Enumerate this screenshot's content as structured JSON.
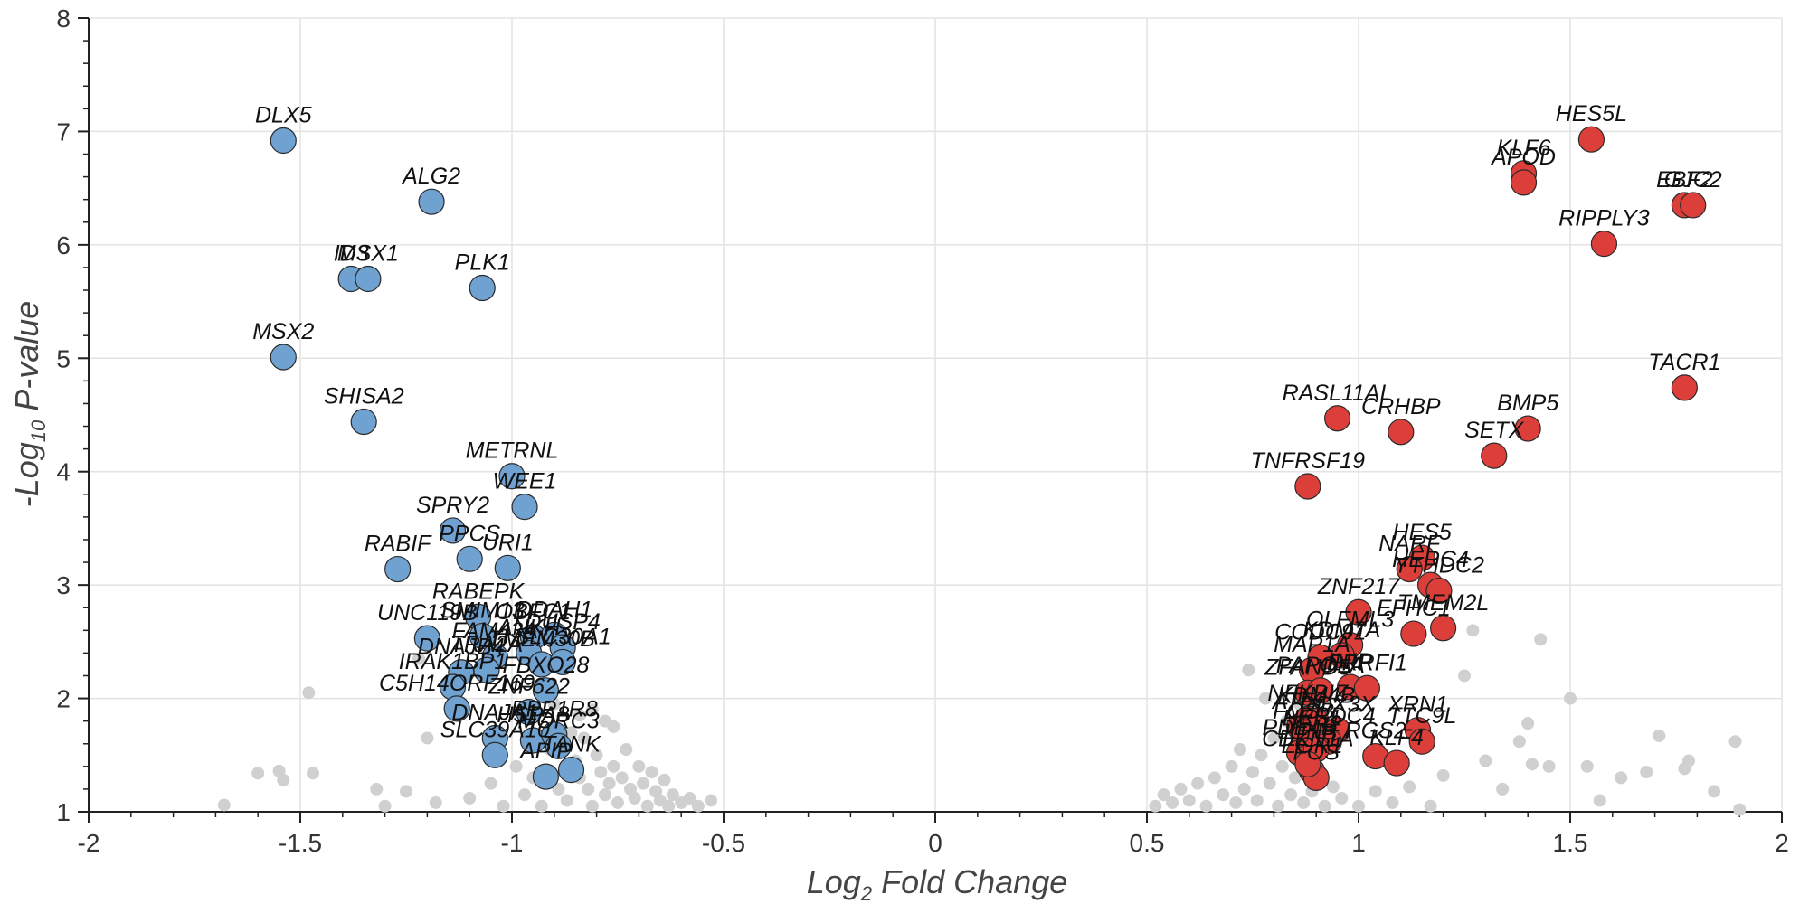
{
  "chart_data": {
    "type": "scatter",
    "xlabel_main": "Log",
    "xlabel_sub": "2",
    "xlabel_rest": " Fold Change",
    "ylabel_main": "-Log",
    "ylabel_sub": "10",
    "ylabel_rest": " P-value",
    "xlim": [
      -2,
      2
    ],
    "ylim": [
      1,
      8
    ],
    "x_ticks": [
      -2,
      -1.5,
      -1,
      -0.5,
      0,
      0.5,
      1,
      1.5,
      2
    ],
    "y_ticks": [
      1,
      2,
      3,
      4,
      5,
      6,
      7,
      8
    ],
    "grid": true,
    "colors": {
      "down": "#6fa1d1",
      "up": "#dc3f3a",
      "ns": "#d0d0d0"
    },
    "down_genes": [
      {
        "label": "DLX5",
        "x": -1.54,
        "y": 6.92
      },
      {
        "label": "ALG2",
        "x": -1.19,
        "y": 6.38
      },
      {
        "label": "ID3",
        "x": -1.38,
        "y": 5.7
      },
      {
        "label": "MSX1",
        "x": -1.34,
        "y": 5.7
      },
      {
        "label": "PLK1",
        "x": -1.07,
        "y": 5.62
      },
      {
        "label": "MSX2",
        "x": -1.54,
        "y": 5.01
      },
      {
        "label": "SHISA2",
        "x": -1.35,
        "y": 4.44
      },
      {
        "label": "METRNL",
        "x": -1.0,
        "y": 3.96
      },
      {
        "label": "WEE1",
        "x": -0.97,
        "y": 3.69
      },
      {
        "label": "SPRY2",
        "x": -1.14,
        "y": 3.48
      },
      {
        "label": "PPCS",
        "x": -1.1,
        "y": 3.23
      },
      {
        "label": "URI1",
        "x": -1.01,
        "y": 3.15
      },
      {
        "label": "RABIF",
        "x": -1.27,
        "y": 3.14
      },
      {
        "label": "RABEPK",
        "x": -1.08,
        "y": 2.72
      },
      {
        "label": "UNC119B",
        "x": -1.2,
        "y": 2.53
      },
      {
        "label": "SMIM13",
        "x": -1.07,
        "y": 2.55
      },
      {
        "label": "OBFC1",
        "x": -0.95,
        "y": 2.54
      },
      {
        "label": "DDAH1",
        "x": -0.9,
        "y": 2.56
      },
      {
        "label": "DUSP4",
        "x": -0.88,
        "y": 2.45
      },
      {
        "label": "FAM43A",
        "x": -1.04,
        "y": 2.37
      },
      {
        "label": "ANKH",
        "x": -0.96,
        "y": 2.4
      },
      {
        "label": "DNAJB4",
        "x": -1.12,
        "y": 2.23
      },
      {
        "label": "IRAK1BP1",
        "x": -1.14,
        "y": 2.1
      },
      {
        "label": "TRA2A",
        "x": -1.06,
        "y": 2.25
      },
      {
        "label": "TMEM30B",
        "x": -0.93,
        "y": 2.3
      },
      {
        "label": "SLC30A1",
        "x": -0.88,
        "y": 2.32
      },
      {
        "label": "C5H14ORF169",
        "x": -1.13,
        "y": 1.91
      },
      {
        "label": "FBXO28",
        "x": -0.92,
        "y": 2.07
      },
      {
        "label": "ZNF622",
        "x": -0.96,
        "y": 1.88
      },
      {
        "label": "DNAJA1",
        "x": -1.04,
        "y": 1.65
      },
      {
        "label": "HSPA8",
        "x": -0.95,
        "y": 1.63
      },
      {
        "label": "PPP1R8",
        "x": -0.9,
        "y": 1.68
      },
      {
        "label": "MORC3",
        "x": -0.89,
        "y": 1.58
      },
      {
        "label": "SLC39A10",
        "x": -1.04,
        "y": 1.5
      },
      {
        "label": "APIP",
        "x": -0.92,
        "y": 1.31
      },
      {
        "label": "TANK",
        "x": -0.86,
        "y": 1.37
      }
    ],
    "up_genes": [
      {
        "label": "HES5L",
        "x": 1.55,
        "y": 6.93
      },
      {
        "label": "KLF6",
        "x": 1.39,
        "y": 6.63
      },
      {
        "label": "APOD",
        "x": 1.39,
        "y": 6.55
      },
      {
        "label": "EBF2",
        "x": 1.77,
        "y": 6.35
      },
      {
        "label": "GJC2",
        "x": 1.79,
        "y": 6.35
      },
      {
        "label": "RIPPLY3",
        "x": 1.58,
        "y": 6.01
      },
      {
        "label": "TACR1",
        "x": 1.77,
        "y": 4.74
      },
      {
        "label": "RASL11AL",
        "x": 0.95,
        "y": 4.47
      },
      {
        "label": "CRHBP",
        "x": 1.1,
        "y": 4.35
      },
      {
        "label": "BMP5",
        "x": 1.4,
        "y": 4.38
      },
      {
        "label": "SETX",
        "x": 1.32,
        "y": 4.14
      },
      {
        "label": "TNFRSF19",
        "x": 0.88,
        "y": 3.87
      },
      {
        "label": "HES5",
        "x": 1.15,
        "y": 3.24
      },
      {
        "label": "NARF",
        "x": 1.12,
        "y": 3.14
      },
      {
        "label": "HERC4",
        "x": 1.17,
        "y": 3.0
      },
      {
        "label": "YTHDC2",
        "x": 1.19,
        "y": 2.95
      },
      {
        "label": "EFHC1",
        "x": 1.13,
        "y": 2.57
      },
      {
        "label": "TMEM2L",
        "x": 1.2,
        "y": 2.62
      },
      {
        "label": "ZNF217",
        "x": 1.0,
        "y": 2.76
      },
      {
        "label": "OLFML3",
        "x": 0.98,
        "y": 2.47
      },
      {
        "label": "KDM7A",
        "x": 0.96,
        "y": 2.38
      },
      {
        "label": "CODC91",
        "x": 0.91,
        "y": 2.36
      },
      {
        "label": "MAP1A",
        "x": 0.89,
        "y": 2.25
      },
      {
        "label": "ZFAND5",
        "x": 0.88,
        "y": 2.05
      },
      {
        "label": "PAPOLA",
        "x": 0.91,
        "y": 2.07
      },
      {
        "label": "INIP",
        "x": 0.98,
        "y": 2.1
      },
      {
        "label": "ERRFI1",
        "x": 1.02,
        "y": 2.09
      },
      {
        "label": "ATF3",
        "x": 0.86,
        "y": 1.75
      },
      {
        "label": "NFKBIZ",
        "x": 0.88,
        "y": 1.82
      },
      {
        "label": "KDM4B",
        "x": 0.9,
        "y": 1.8
      },
      {
        "label": "DDX3X",
        "x": 0.95,
        "y": 1.72
      },
      {
        "label": "XRN1",
        "x": 1.14,
        "y": 1.72
      },
      {
        "label": "FOSB",
        "x": 0.87,
        "y": 1.66
      },
      {
        "label": "HES1",
        "x": 0.89,
        "y": 1.6
      },
      {
        "label": "ARRDC4",
        "x": 0.93,
        "y": 1.62
      },
      {
        "label": "PDE4B",
        "x": 0.86,
        "y": 1.52
      },
      {
        "label": "JUNB",
        "x": 0.88,
        "y": 1.48
      },
      {
        "label": "IER2",
        "x": 0.9,
        "y": 1.55
      },
      {
        "label": "EGR1",
        "x": 0.89,
        "y": 1.36
      },
      {
        "label": "FOS",
        "x": 0.9,
        "y": 1.3
      },
      {
        "label": "CDKN1A",
        "x": 0.88,
        "y": 1.42
      },
      {
        "label": "RGS2",
        "x": 1.04,
        "y": 1.49
      },
      {
        "label": "KLF4",
        "x": 1.09,
        "y": 1.43
      },
      {
        "label": "TTC9L",
        "x": 1.15,
        "y": 1.62
      }
    ],
    "ns_points": [
      {
        "x": -1.68,
        "y": 1.06
      },
      {
        "x": -1.6,
        "y": 1.34
      },
      {
        "x": -1.55,
        "y": 1.36
      },
      {
        "x": -1.54,
        "y": 1.28
      },
      {
        "x": -1.47,
        "y": 1.34
      },
      {
        "x": -1.48,
        "y": 2.05
      },
      {
        "x": -1.32,
        "y": 1.2
      },
      {
        "x": -1.3,
        "y": 1.05
      },
      {
        "x": -1.25,
        "y": 1.18
      },
      {
        "x": -1.22,
        "y": 2.35
      },
      {
        "x": -1.2,
        "y": 1.65
      },
      {
        "x": -1.18,
        "y": 1.08
      },
      {
        "x": -1.15,
        "y": 2.05
      },
      {
        "x": -1.1,
        "y": 1.12
      },
      {
        "x": -1.05,
        "y": 1.25
      },
      {
        "x": -1.02,
        "y": 1.05
      },
      {
        "x": -0.99,
        "y": 1.4
      },
      {
        "x": -0.97,
        "y": 1.15
      },
      {
        "x": -0.95,
        "y": 1.3
      },
      {
        "x": -0.93,
        "y": 1.05
      },
      {
        "x": -0.91,
        "y": 1.55
      },
      {
        "x": -0.89,
        "y": 1.2
      },
      {
        "x": -0.87,
        "y": 1.1
      },
      {
        "x": -0.85,
        "y": 1.45
      },
      {
        "x": -0.84,
        "y": 1.3
      },
      {
        "x": -0.83,
        "y": 1.65
      },
      {
        "x": -0.82,
        "y": 1.2
      },
      {
        "x": -0.81,
        "y": 1.05
      },
      {
        "x": -0.8,
        "y": 1.5
      },
      {
        "x": -0.79,
        "y": 1.35
      },
      {
        "x": -0.78,
        "y": 1.15
      },
      {
        "x": -0.77,
        "y": 1.25
      },
      {
        "x": -0.76,
        "y": 1.4
      },
      {
        "x": -0.75,
        "y": 1.08
      },
      {
        "x": -0.74,
        "y": 1.3
      },
      {
        "x": -0.73,
        "y": 1.55
      },
      {
        "x": -0.72,
        "y": 1.2
      },
      {
        "x": -0.71,
        "y": 1.12
      },
      {
        "x": -0.7,
        "y": 1.4
      },
      {
        "x": -0.69,
        "y": 1.25
      },
      {
        "x": -0.68,
        "y": 1.05
      },
      {
        "x": -0.67,
        "y": 1.35
      },
      {
        "x": -0.66,
        "y": 1.18
      },
      {
        "x": -0.65,
        "y": 1.1
      },
      {
        "x": -0.64,
        "y": 1.28
      },
      {
        "x": -0.63,
        "y": 1.05
      },
      {
        "x": -0.62,
        "y": 1.15
      },
      {
        "x": -0.6,
        "y": 1.08
      },
      {
        "x": -0.58,
        "y": 1.12
      },
      {
        "x": -0.56,
        "y": 1.05
      },
      {
        "x": -0.53,
        "y": 1.1
      },
      {
        "x": -0.84,
        "y": 1.85
      },
      {
        "x": -0.81,
        "y": 1.9
      },
      {
        "x": -0.78,
        "y": 1.8
      },
      {
        "x": -0.76,
        "y": 1.75
      },
      {
        "x": -0.9,
        "y": 1.95
      },
      {
        "x": -0.86,
        "y": 1.7
      },
      {
        "x": 0.52,
        "y": 1.05
      },
      {
        "x": 0.54,
        "y": 1.15
      },
      {
        "x": 0.56,
        "y": 1.08
      },
      {
        "x": 0.58,
        "y": 1.2
      },
      {
        "x": 0.6,
        "y": 1.1
      },
      {
        "x": 0.62,
        "y": 1.25
      },
      {
        "x": 0.64,
        "y": 1.05
      },
      {
        "x": 0.66,
        "y": 1.3
      },
      {
        "x": 0.68,
        "y": 1.15
      },
      {
        "x": 0.7,
        "y": 1.4
      },
      {
        "x": 0.71,
        "y": 1.08
      },
      {
        "x": 0.72,
        "y": 1.55
      },
      {
        "x": 0.73,
        "y": 1.2
      },
      {
        "x": 0.74,
        "y": 2.25
      },
      {
        "x": 0.75,
        "y": 1.35
      },
      {
        "x": 0.76,
        "y": 1.1
      },
      {
        "x": 0.77,
        "y": 1.5
      },
      {
        "x": 0.78,
        "y": 2.0
      },
      {
        "x": 0.79,
        "y": 1.25
      },
      {
        "x": 0.8,
        "y": 1.65
      },
      {
        "x": 0.81,
        "y": 1.05
      },
      {
        "x": 0.82,
        "y": 1.4
      },
      {
        "x": 0.83,
        "y": 1.8
      },
      {
        "x": 0.84,
        "y": 1.15
      },
      {
        "x": 0.85,
        "y": 1.3
      },
      {
        "x": 0.86,
        "y": 1.95
      },
      {
        "x": 0.87,
        "y": 1.08
      },
      {
        "x": 0.89,
        "y": 1.18
      },
      {
        "x": 0.92,
        "y": 1.05
      },
      {
        "x": 0.94,
        "y": 1.22
      },
      {
        "x": 0.96,
        "y": 1.12
      },
      {
        "x": 1.0,
        "y": 1.05
      },
      {
        "x": 1.04,
        "y": 1.18
      },
      {
        "x": 1.08,
        "y": 1.08
      },
      {
        "x": 1.12,
        "y": 1.22
      },
      {
        "x": 1.17,
        "y": 1.05
      },
      {
        "x": 1.2,
        "y": 1.32
      },
      {
        "x": 1.25,
        "y": 2.2
      },
      {
        "x": 1.27,
        "y": 2.6
      },
      {
        "x": 1.3,
        "y": 1.45
      },
      {
        "x": 1.34,
        "y": 1.2
      },
      {
        "x": 1.38,
        "y": 1.62
      },
      {
        "x": 1.4,
        "y": 1.78
      },
      {
        "x": 1.41,
        "y": 1.42
      },
      {
        "x": 1.43,
        "y": 2.52
      },
      {
        "x": 1.45,
        "y": 1.4
      },
      {
        "x": 1.5,
        "y": 2.0
      },
      {
        "x": 1.54,
        "y": 1.4
      },
      {
        "x": 1.57,
        "y": 1.1
      },
      {
        "x": 1.62,
        "y": 1.3
      },
      {
        "x": 1.68,
        "y": 1.35
      },
      {
        "x": 1.71,
        "y": 1.67
      },
      {
        "x": 1.77,
        "y": 1.38
      },
      {
        "x": 1.78,
        "y": 1.45
      },
      {
        "x": 1.84,
        "y": 1.18
      },
      {
        "x": 1.89,
        "y": 1.62
      },
      {
        "x": 1.9,
        "y": 1.02
      }
    ]
  }
}
